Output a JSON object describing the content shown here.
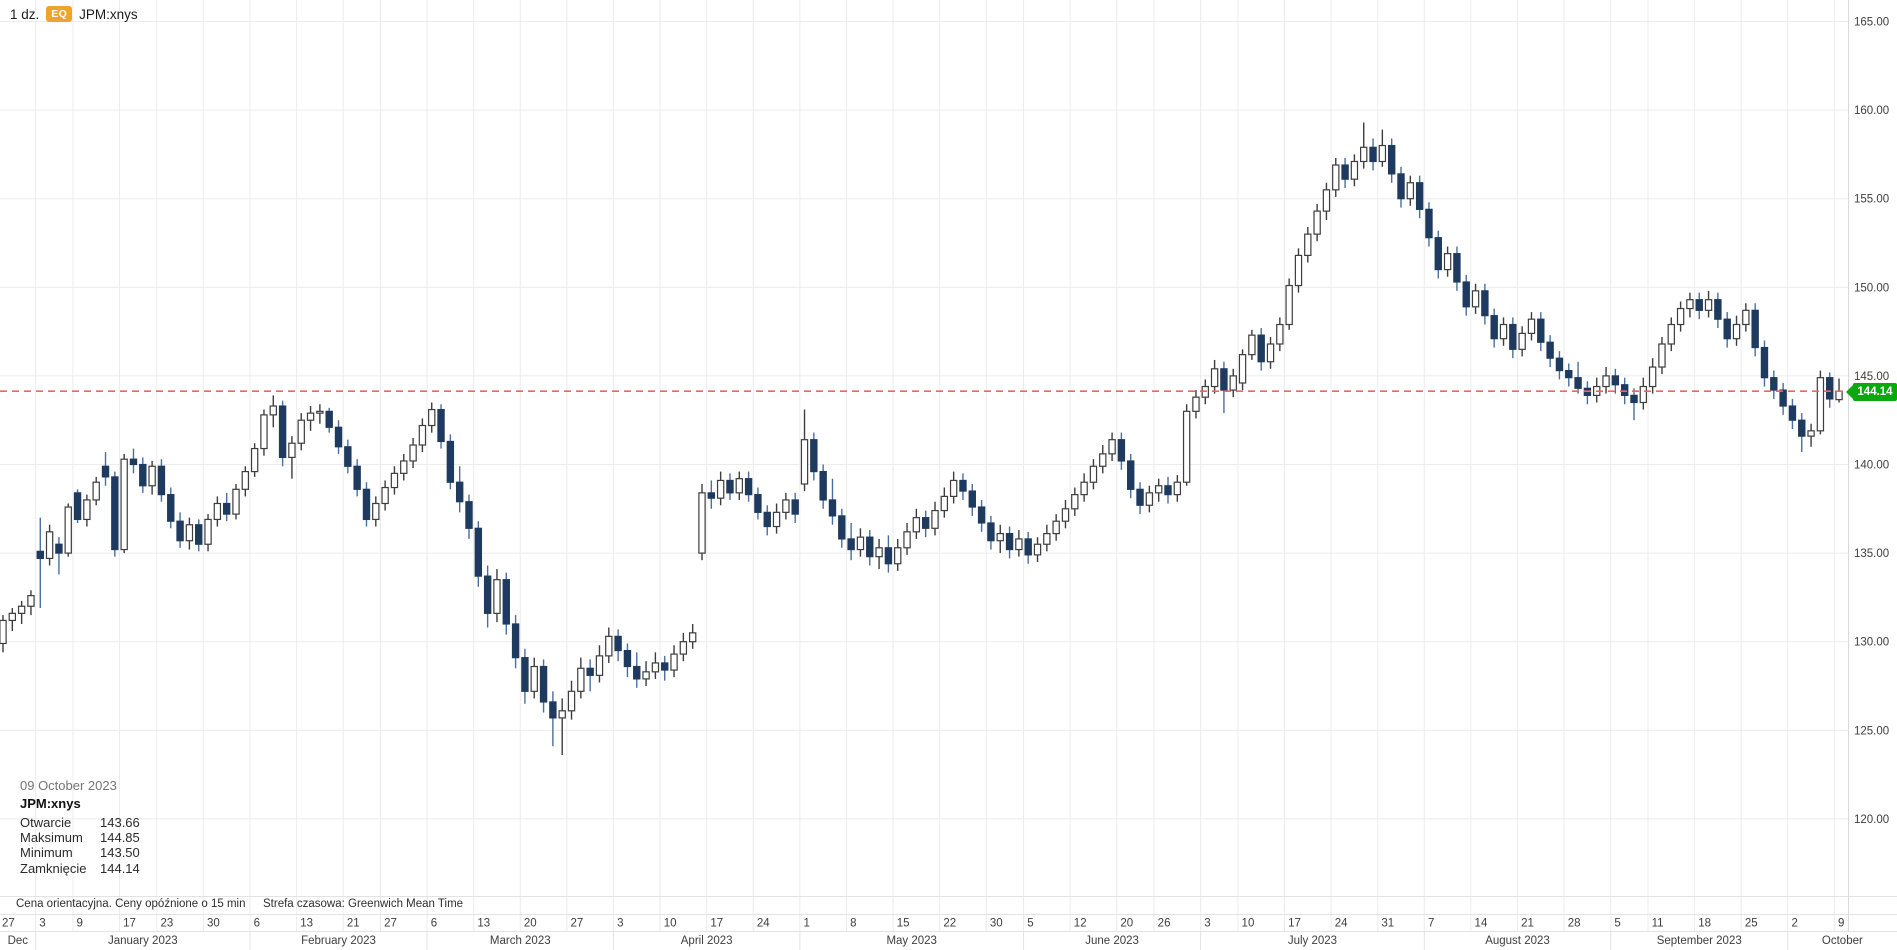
{
  "header": {
    "interval": "1 dz.",
    "badge": "EQ",
    "symbol": "JPM:xnys"
  },
  "tooltip": {
    "date": "09 October 2023",
    "symbol": "JPM:xnys",
    "rows": [
      {
        "label": "Otwarcie",
        "value": "143.66"
      },
      {
        "label": "Maksimum",
        "value": "144.85"
      },
      {
        "label": "Minimum",
        "value": "143.50"
      },
      {
        "label": "Zamknięcie",
        "value": "144.14"
      }
    ]
  },
  "footer": {
    "disclaimer": "Cena orientacyjna. Ceny opóźnione o 15 min",
    "timezone": "Strefa czasowa: Greenwich Mean Time"
  },
  "last_price": {
    "value": "144.14",
    "line_color": "#f4645c",
    "badge_color": "#0aa70e"
  },
  "chart_data": {
    "type": "candlestick",
    "symbol": "JPM:xnys",
    "interval": "1 dz.",
    "y_axis": {
      "min": 120,
      "max": 165,
      "step": 5,
      "labels": [
        "165.00",
        "160.00",
        "155.00",
        "150.00",
        "145.00",
        "140.00",
        "135.00",
        "130.00",
        "125.00",
        "120.00"
      ]
    },
    "x_ticks": [
      {
        "label": "27",
        "i": 0
      },
      {
        "label": "3",
        "i": 4
      },
      {
        "label": "9",
        "i": 8
      },
      {
        "label": "17",
        "i": 13
      },
      {
        "label": "23",
        "i": 17
      },
      {
        "label": "30",
        "i": 22
      },
      {
        "label": "6",
        "i": 27
      },
      {
        "label": "13",
        "i": 32
      },
      {
        "label": "21",
        "i": 37
      },
      {
        "label": "27",
        "i": 41
      },
      {
        "label": "6",
        "i": 46
      },
      {
        "label": "13",
        "i": 51
      },
      {
        "label": "20",
        "i": 56
      },
      {
        "label": "27",
        "i": 61
      },
      {
        "label": "3",
        "i": 66
      },
      {
        "label": "10",
        "i": 71
      },
      {
        "label": "17",
        "i": 76
      },
      {
        "label": "24",
        "i": 81
      },
      {
        "label": "1",
        "i": 86
      },
      {
        "label": "8",
        "i": 91
      },
      {
        "label": "15",
        "i": 96
      },
      {
        "label": "22",
        "i": 101
      },
      {
        "label": "30",
        "i": 106
      },
      {
        "label": "5",
        "i": 110
      },
      {
        "label": "12",
        "i": 115
      },
      {
        "label": "20",
        "i": 120
      },
      {
        "label": "26",
        "i": 124
      },
      {
        "label": "3",
        "i": 129
      },
      {
        "label": "10",
        "i": 133
      },
      {
        "label": "17",
        "i": 138
      },
      {
        "label": "24",
        "i": 143
      },
      {
        "label": "31",
        "i": 148
      },
      {
        "label": "7",
        "i": 153
      },
      {
        "label": "14",
        "i": 158
      },
      {
        "label": "21",
        "i": 163
      },
      {
        "label": "28",
        "i": 168
      },
      {
        "label": "5",
        "i": 173
      },
      {
        "label": "11",
        "i": 177
      },
      {
        "label": "18",
        "i": 182
      },
      {
        "label": "25",
        "i": 187
      },
      {
        "label": "2",
        "i": 192
      },
      {
        "label": "9",
        "i": 197
      }
    ],
    "months": [
      {
        "label": "Dec",
        "start": 0,
        "end": 4
      },
      {
        "label": "January 2023",
        "start": 4,
        "end": 27
      },
      {
        "label": "February 2023",
        "start": 27,
        "end": 46
      },
      {
        "label": "March 2023",
        "start": 46,
        "end": 66
      },
      {
        "label": "April 2023",
        "start": 66,
        "end": 86
      },
      {
        "label": "May 2023",
        "start": 86,
        "end": 110
      },
      {
        "label": "June 2023",
        "start": 110,
        "end": 129
      },
      {
        "label": "July 2023",
        "start": 129,
        "end": 153
      },
      {
        "label": "August 2023",
        "start": 153,
        "end": 173
      },
      {
        "label": "September 2023",
        "start": 173,
        "end": 192
      },
      {
        "label": "October",
        "start": 192,
        "end": 198
      }
    ],
    "last_price": 144.14,
    "colors": {
      "up_body": "#ffffff",
      "up_stroke": "#3d3d3d",
      "up_wick": "#3d3d3d",
      "down_body": "#1e3a5f",
      "down_wick": "#4a6f9f",
      "grid": "#ececec",
      "axis_border": "#d9d9d9",
      "axis_text": "#3e3e3e",
      "last_line": "#f4645c",
      "badge": "#0aa70e"
    },
    "candles": [
      [
        129.9,
        131.5,
        129.4,
        131.2
      ],
      [
        131.2,
        131.9,
        130.6,
        131.6
      ],
      [
        131.6,
        132.3,
        131.0,
        132.0
      ],
      [
        132.0,
        132.9,
        131.5,
        132.6
      ],
      [
        135.1,
        137.0,
        131.9,
        134.7
      ],
      [
        134.7,
        136.6,
        134.3,
        136.2
      ],
      [
        135.5,
        135.9,
        133.8,
        135.0
      ],
      [
        135.0,
        137.8,
        134.8,
        137.6
      ],
      [
        138.4,
        138.6,
        136.7,
        136.9
      ],
      [
        136.9,
        138.3,
        136.5,
        138.0
      ],
      [
        138.0,
        139.3,
        137.7,
        139.0
      ],
      [
        139.9,
        140.7,
        138.8,
        139.3
      ],
      [
        139.3,
        139.6,
        134.8,
        135.2
      ],
      [
        135.2,
        140.6,
        135.0,
        140.3
      ],
      [
        140.3,
        140.9,
        139.5,
        140.0
      ],
      [
        140.0,
        140.4,
        138.4,
        138.8
      ],
      [
        138.8,
        140.2,
        138.3,
        139.9
      ],
      [
        139.9,
        140.3,
        137.9,
        138.3
      ],
      [
        138.3,
        138.7,
        136.4,
        136.8
      ],
      [
        136.8,
        137.3,
        135.3,
        135.7
      ],
      [
        135.7,
        137.0,
        135.2,
        136.6
      ],
      [
        136.6,
        136.9,
        135.1,
        135.5
      ],
      [
        135.5,
        137.2,
        135.1,
        136.9
      ],
      [
        136.9,
        138.2,
        136.5,
        137.8
      ],
      [
        137.8,
        138.4,
        136.8,
        137.2
      ],
      [
        137.2,
        138.9,
        136.9,
        138.6
      ],
      [
        138.6,
        139.9,
        138.2,
        139.6
      ],
      [
        139.6,
        141.2,
        139.3,
        140.9
      ],
      [
        140.9,
        143.1,
        140.5,
        142.8
      ],
      [
        142.8,
        143.9,
        142.1,
        143.3
      ],
      [
        143.3,
        143.6,
        139.9,
        140.4
      ],
      [
        140.4,
        141.6,
        139.2,
        141.2
      ],
      [
        141.2,
        142.9,
        140.8,
        142.5
      ],
      [
        142.5,
        143.3,
        141.9,
        142.9
      ],
      [
        142.9,
        143.4,
        142.3,
        143.0
      ],
      [
        143.0,
        143.2,
        141.8,
        142.1
      ],
      [
        142.1,
        142.5,
        140.6,
        141.0
      ],
      [
        141.0,
        141.4,
        139.5,
        139.9
      ],
      [
        139.9,
        140.3,
        138.2,
        138.6
      ],
      [
        138.6,
        139.0,
        136.5,
        136.9
      ],
      [
        136.9,
        138.2,
        136.5,
        137.8
      ],
      [
        137.8,
        139.1,
        137.4,
        138.7
      ],
      [
        138.7,
        139.9,
        138.3,
        139.5
      ],
      [
        139.5,
        140.6,
        139.1,
        140.2
      ],
      [
        140.2,
        141.5,
        139.8,
        141.1
      ],
      [
        141.1,
        142.6,
        140.7,
        142.2
      ],
      [
        142.2,
        143.5,
        141.8,
        143.1
      ],
      [
        143.1,
        143.4,
        140.9,
        141.3
      ],
      [
        141.3,
        141.7,
        138.6,
        139.0
      ],
      [
        139.0,
        139.9,
        137.3,
        137.9
      ],
      [
        137.9,
        138.3,
        135.8,
        136.4
      ],
      [
        136.4,
        136.8,
        133.1,
        133.7
      ],
      [
        133.7,
        134.3,
        130.8,
        131.6
      ],
      [
        131.6,
        134.1,
        131.1,
        133.5
      ],
      [
        133.5,
        133.9,
        130.4,
        131.0
      ],
      [
        131.0,
        131.5,
        128.5,
        129.1
      ],
      [
        129.1,
        129.6,
        126.5,
        127.2
      ],
      [
        127.2,
        129.1,
        126.8,
        128.6
      ],
      [
        128.6,
        129.0,
        126.0,
        126.6
      ],
      [
        126.6,
        127.2,
        124.1,
        125.7
      ],
      [
        125.7,
        126.8,
        123.6,
        126.1
      ],
      [
        126.1,
        127.8,
        125.6,
        127.2
      ],
      [
        127.2,
        129.1,
        126.8,
        128.5
      ],
      [
        128.5,
        129.0,
        127.2,
        128.1
      ],
      [
        128.1,
        129.8,
        127.7,
        129.2
      ],
      [
        129.2,
        130.8,
        128.8,
        130.3
      ],
      [
        130.3,
        130.7,
        128.9,
        129.5
      ],
      [
        129.5,
        129.9,
        128.0,
        128.6
      ],
      [
        128.6,
        129.4,
        127.4,
        127.9
      ],
      [
        127.9,
        128.9,
        127.5,
        128.3
      ],
      [
        128.3,
        129.4,
        127.9,
        128.8
      ],
      [
        128.8,
        129.2,
        127.8,
        128.4
      ],
      [
        128.4,
        129.8,
        128.0,
        129.3
      ],
      [
        129.3,
        130.5,
        128.9,
        130.0
      ],
      [
        130.0,
        131.0,
        129.6,
        130.5
      ],
      [
        135.0,
        138.9,
        134.6,
        138.4
      ],
      [
        138.4,
        139.1,
        137.5,
        138.1
      ],
      [
        138.1,
        139.6,
        137.7,
        139.1
      ],
      [
        139.1,
        139.5,
        138.0,
        138.4
      ],
      [
        138.4,
        139.6,
        138.0,
        139.2
      ],
      [
        139.2,
        139.6,
        137.9,
        138.3
      ],
      [
        138.3,
        138.7,
        136.9,
        137.3
      ],
      [
        137.3,
        137.7,
        136.0,
        136.5
      ],
      [
        136.5,
        137.8,
        136.1,
        137.3
      ],
      [
        137.3,
        138.4,
        136.9,
        138.0
      ],
      [
        138.0,
        138.4,
        136.7,
        137.2
      ],
      [
        138.9,
        143.1,
        138.5,
        141.4
      ],
      [
        141.4,
        141.8,
        139.1,
        139.6
      ],
      [
        139.6,
        140.0,
        137.5,
        138.0
      ],
      [
        138.0,
        139.2,
        136.6,
        137.1
      ],
      [
        137.1,
        137.5,
        135.3,
        135.8
      ],
      [
        135.8,
        136.7,
        134.6,
        135.2
      ],
      [
        135.2,
        136.4,
        134.8,
        135.9
      ],
      [
        135.9,
        136.3,
        134.3,
        134.8
      ],
      [
        134.8,
        135.8,
        134.1,
        135.3
      ],
      [
        135.3,
        136.0,
        133.9,
        134.4
      ],
      [
        134.4,
        135.8,
        134.0,
        135.3
      ],
      [
        135.3,
        136.7,
        134.9,
        136.2
      ],
      [
        136.2,
        137.5,
        135.8,
        137.0
      ],
      [
        137.0,
        137.4,
        135.9,
        136.4
      ],
      [
        136.4,
        137.9,
        136.0,
        137.4
      ],
      [
        137.4,
        138.7,
        137.0,
        138.2
      ],
      [
        138.2,
        139.6,
        137.8,
        139.1
      ],
      [
        139.1,
        139.5,
        138.0,
        138.5
      ],
      [
        138.5,
        138.9,
        137.1,
        137.6
      ],
      [
        137.6,
        138.0,
        136.2,
        136.7
      ],
      [
        136.7,
        137.1,
        135.2,
        135.7
      ],
      [
        135.7,
        136.6,
        135.0,
        136.1
      ],
      [
        136.1,
        136.5,
        134.7,
        135.2
      ],
      [
        135.2,
        136.3,
        134.8,
        135.8
      ],
      [
        135.8,
        136.2,
        134.4,
        134.9
      ],
      [
        134.9,
        135.9,
        134.5,
        135.5
      ],
      [
        135.5,
        136.6,
        135.1,
        136.1
      ],
      [
        136.1,
        137.2,
        135.7,
        136.8
      ],
      [
        136.8,
        138.0,
        136.4,
        137.5
      ],
      [
        137.5,
        138.7,
        137.1,
        138.3
      ],
      [
        138.3,
        139.5,
        137.9,
        139.0
      ],
      [
        139.0,
        140.3,
        138.6,
        139.9
      ],
      [
        139.9,
        141.1,
        139.5,
        140.6
      ],
      [
        140.6,
        141.8,
        140.2,
        141.4
      ],
      [
        141.4,
        141.8,
        139.7,
        140.2
      ],
      [
        140.2,
        140.6,
        138.1,
        138.6
      ],
      [
        138.6,
        139.0,
        137.2,
        137.7
      ],
      [
        137.7,
        138.8,
        137.3,
        138.4
      ],
      [
        138.4,
        139.2,
        137.9,
        138.8
      ],
      [
        138.8,
        139.3,
        137.8,
        138.3
      ],
      [
        138.3,
        139.4,
        137.9,
        139.0
      ],
      [
        139.0,
        143.4,
        138.8,
        143.0
      ],
      [
        143.0,
        144.2,
        142.6,
        143.8
      ],
      [
        143.8,
        144.8,
        143.4,
        144.4
      ],
      [
        144.4,
        145.9,
        144.0,
        145.4
      ],
      [
        145.4,
        145.8,
        142.9,
        144.2
      ],
      [
        144.2,
        145.4,
        143.8,
        145.0
      ],
      [
        144.6,
        146.5,
        144.2,
        146.2
      ],
      [
        146.2,
        147.6,
        145.9,
        147.3
      ],
      [
        147.3,
        147.7,
        145.3,
        145.8
      ],
      [
        145.8,
        147.2,
        145.4,
        146.8
      ],
      [
        146.8,
        148.3,
        146.4,
        147.9
      ],
      [
        147.9,
        150.5,
        147.6,
        150.1
      ],
      [
        150.1,
        152.2,
        149.7,
        151.8
      ],
      [
        151.8,
        153.4,
        151.4,
        153.0
      ],
      [
        153.0,
        154.7,
        152.6,
        154.3
      ],
      [
        154.3,
        155.9,
        153.8,
        155.5
      ],
      [
        155.5,
        157.3,
        155.1,
        156.9
      ],
      [
        156.9,
        157.3,
        155.6,
        156.1
      ],
      [
        156.1,
        157.5,
        155.7,
        157.1
      ],
      [
        157.1,
        159.3,
        156.7,
        157.9
      ],
      [
        157.9,
        158.4,
        156.6,
        157.1
      ],
      [
        157.1,
        158.9,
        156.8,
        158.0
      ],
      [
        158.0,
        158.4,
        155.9,
        156.4
      ],
      [
        156.4,
        156.8,
        154.5,
        155.0
      ],
      [
        155.0,
        156.3,
        154.6,
        155.9
      ],
      [
        155.9,
        156.3,
        153.9,
        154.4
      ],
      [
        154.4,
        154.8,
        152.3,
        152.8
      ],
      [
        152.8,
        153.2,
        150.5,
        151.0
      ],
      [
        151.0,
        152.3,
        150.6,
        151.9
      ],
      [
        151.9,
        152.3,
        149.8,
        150.3
      ],
      [
        150.3,
        150.7,
        148.4,
        148.9
      ],
      [
        148.9,
        150.2,
        148.5,
        149.8
      ],
      [
        149.8,
        150.2,
        147.9,
        148.4
      ],
      [
        148.4,
        148.8,
        146.6,
        147.1
      ],
      [
        147.1,
        148.3,
        146.7,
        147.9
      ],
      [
        147.9,
        148.3,
        146.0,
        146.5
      ],
      [
        146.5,
        147.8,
        146.1,
        147.4
      ],
      [
        147.4,
        148.6,
        147.0,
        148.2
      ],
      [
        148.2,
        148.6,
        146.4,
        146.9
      ],
      [
        146.9,
        147.3,
        145.5,
        146.0
      ],
      [
        146.0,
        146.4,
        144.8,
        145.3
      ],
      [
        145.3,
        145.7,
        144.4,
        144.9
      ],
      [
        144.9,
        145.8,
        144.0,
        144.3
      ],
      [
        144.3,
        144.7,
        143.4,
        143.9
      ],
      [
        143.9,
        144.9,
        143.5,
        144.4
      ],
      [
        144.4,
        145.5,
        144.0,
        145.0
      ],
      [
        145.0,
        145.4,
        144.0,
        144.5
      ],
      [
        144.5,
        144.9,
        143.4,
        143.9
      ],
      [
        143.9,
        144.3,
        142.5,
        143.5
      ],
      [
        143.5,
        144.9,
        143.1,
        144.4
      ],
      [
        144.4,
        146.0,
        144.0,
        145.5
      ],
      [
        145.5,
        147.2,
        145.1,
        146.8
      ],
      [
        146.8,
        148.3,
        146.4,
        147.9
      ],
      [
        147.9,
        149.2,
        147.5,
        148.8
      ],
      [
        148.8,
        149.7,
        148.3,
        149.3
      ],
      [
        149.3,
        149.7,
        148.2,
        148.7
      ],
      [
        148.7,
        149.8,
        148.3,
        149.3
      ],
      [
        149.3,
        149.7,
        147.7,
        148.2
      ],
      [
        148.2,
        148.6,
        146.6,
        147.1
      ],
      [
        147.1,
        148.4,
        146.7,
        147.9
      ],
      [
        147.9,
        149.1,
        147.5,
        148.7
      ],
      [
        148.7,
        149.1,
        146.1,
        146.6
      ],
      [
        146.6,
        147.0,
        144.4,
        144.9
      ],
      [
        144.9,
        145.3,
        143.7,
        144.2
      ],
      [
        144.2,
        144.6,
        142.8,
        143.3
      ],
      [
        143.3,
        143.7,
        142.0,
        142.5
      ],
      [
        142.5,
        142.9,
        140.7,
        141.6
      ],
      [
        141.6,
        142.3,
        141.0,
        141.9
      ],
      [
        141.9,
        145.3,
        141.7,
        144.9
      ],
      [
        144.9,
        145.2,
        143.2,
        143.7
      ],
      [
        143.66,
        144.85,
        143.5,
        144.14
      ]
    ]
  }
}
